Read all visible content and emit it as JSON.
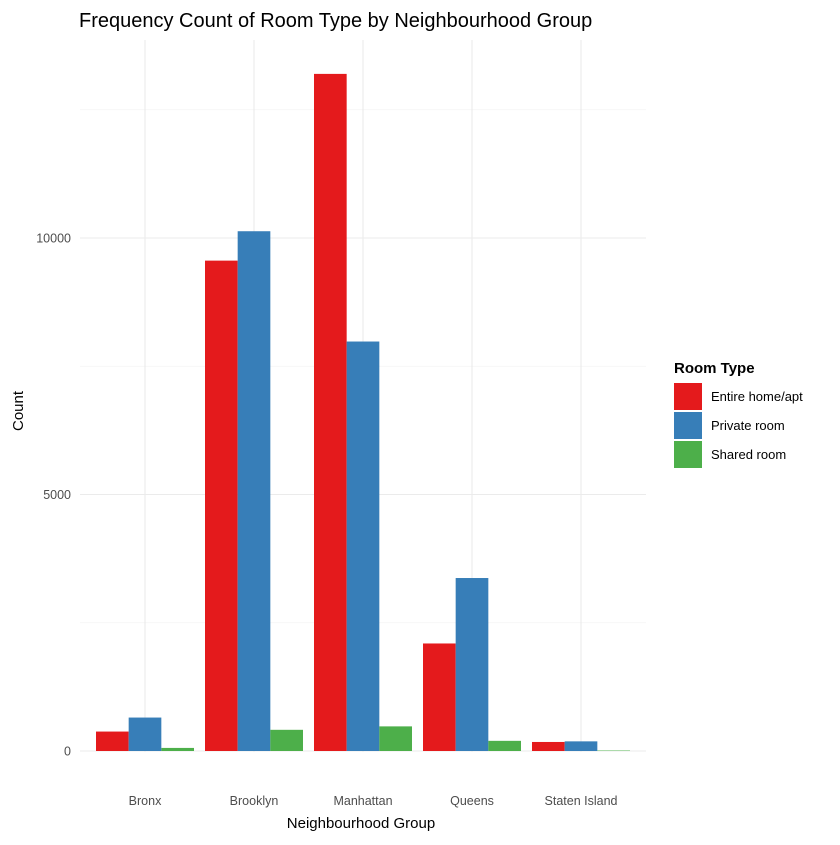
{
  "chart_data": {
    "type": "bar",
    "title": "Frequency Count of Room Type by Neighbourhood Group",
    "xlabel": "Neighbourhood Group",
    "ylabel": "Count",
    "categories": [
      "Bronx",
      "Brooklyn",
      "Manhattan",
      "Queens",
      "Staten Island"
    ],
    "series": [
      {
        "name": "Entire home/apt",
        "color": "#E41A1C",
        "values": [
          379,
          9559,
          13199,
          2096,
          176
        ]
      },
      {
        "name": "Private room",
        "color": "#377EB8",
        "values": [
          652,
          10132,
          7982,
          3372,
          188
        ]
      },
      {
        "name": "Shared room",
        "color": "#4DAF4A",
        "values": [
          60,
          413,
          480,
          198,
          9
        ]
      }
    ],
    "ylim": [
      0,
      13200
    ],
    "yticks": [
      0,
      5000,
      10000
    ],
    "ytick_labels": [
      "0",
      "5000",
      "10000"
    ],
    "y_minor_ticks": [
      2500,
      7500,
      12500
    ],
    "grid": true,
    "legend": {
      "title": "Room Type",
      "position": "right"
    }
  }
}
